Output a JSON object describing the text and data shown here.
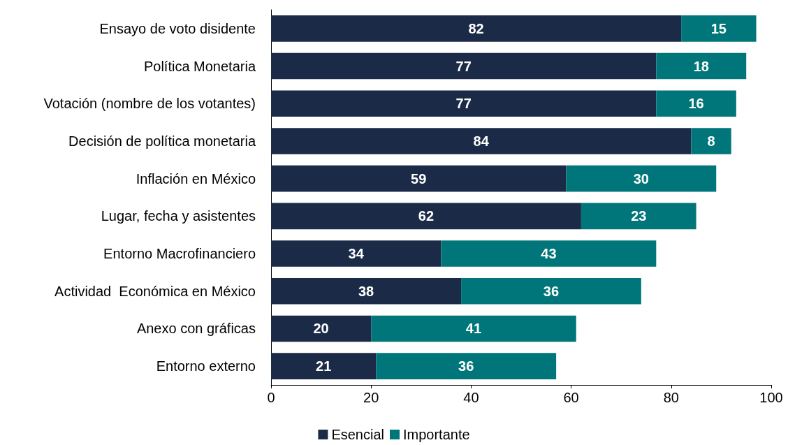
{
  "chart_data": {
    "type": "bar",
    "orientation": "horizontal",
    "stacked": true,
    "categories": [
      "Ensayo de voto disidente",
      "Política Monetaria",
      "Votación (nombre de los votantes)",
      "Decisión de política monetaria",
      "Inflación en México",
      "Lugar, fecha y asistentes",
      "Entorno Macrofinanciero",
      "Actividad  Económica en México",
      "Anexo con gráficas",
      "Entorno externo"
    ],
    "series": [
      {
        "name": "Esencial",
        "color": "#1b2a47",
        "values": [
          82,
          77,
          77,
          84,
          59,
          62,
          34,
          38,
          20,
          21
        ]
      },
      {
        "name": "Importante",
        "color": "#00767a",
        "values": [
          15,
          18,
          16,
          8,
          30,
          23,
          43,
          36,
          41,
          36
        ]
      }
    ],
    "xlim": [
      0,
      100
    ],
    "xticks": [
      0,
      20,
      40,
      60,
      80,
      100
    ],
    "grid": false,
    "legend": "bottom",
    "data_labels": true
  }
}
